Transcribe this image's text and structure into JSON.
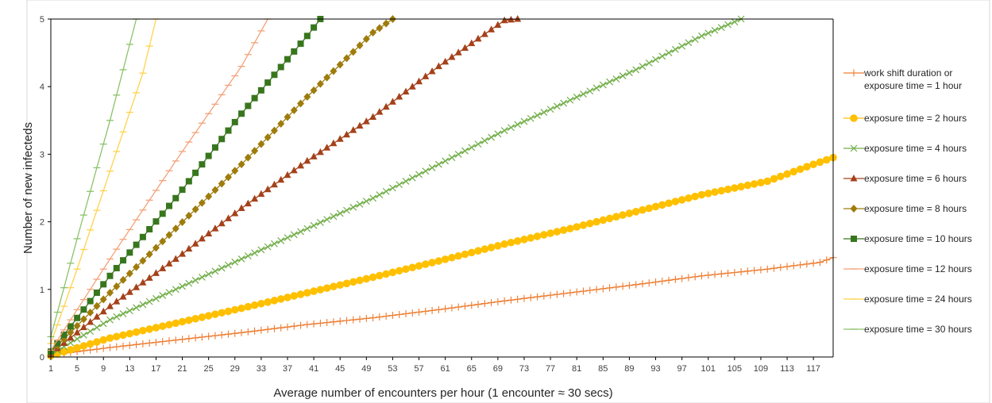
{
  "chart_data": {
    "type": "line",
    "title": "",
    "xlabel": "Average number of encounters per hour (1 encounter ≈ 30 secs)",
    "ylabel": "Number of new infecteds",
    "xlim": [
      1,
      120
    ],
    "ylim": [
      0,
      5
    ],
    "x_ticks": [
      1,
      5,
      9,
      13,
      17,
      21,
      25,
      29,
      33,
      37,
      41,
      45,
      49,
      53,
      57,
      61,
      65,
      69,
      73,
      77,
      81,
      85,
      89,
      93,
      97,
      101,
      105,
      109,
      113,
      117
    ],
    "y_ticks": [
      0,
      1,
      2,
      3,
      4,
      5
    ],
    "grid": false,
    "legend_position": "right",
    "series": [
      {
        "name": "work shift duration or exposure time = 1 hour",
        "label_lines": [
          "work shift duration or",
          "exposure time = 1 hour"
        ],
        "color": "#ED7D31",
        "marker": "plus",
        "x": [
          1,
          10,
          20,
          30,
          40,
          50,
          60,
          70,
          80,
          90,
          100,
          110,
          118,
          120
        ],
        "y": [
          0.03,
          0.14,
          0.25,
          0.36,
          0.48,
          0.58,
          0.7,
          0.83,
          0.95,
          1.07,
          1.2,
          1.3,
          1.4,
          1.47
        ]
      },
      {
        "name": "exposure time = 2 hours",
        "label_lines": [
          "exposure time = 2 hours"
        ],
        "color": "#FFC000",
        "marker": "circle",
        "x": [
          1,
          10,
          20,
          30,
          40,
          50,
          60,
          70,
          80,
          90,
          100,
          110,
          117,
          120
        ],
        "y": [
          0.02,
          0.28,
          0.5,
          0.72,
          0.95,
          1.18,
          1.42,
          1.67,
          1.9,
          2.15,
          2.4,
          2.6,
          2.85,
          2.95
        ]
      },
      {
        "name": "exposure time = 4 hours",
        "label_lines": [
          "exposure time = 4 hours"
        ],
        "color": "#70AD47",
        "marker": "x",
        "x": [
          1,
          10,
          20,
          30,
          40,
          50,
          60,
          70,
          80,
          90,
          100,
          106
        ],
        "y": [
          0.04,
          0.55,
          1.0,
          1.45,
          1.9,
          2.35,
          2.85,
          3.35,
          3.8,
          4.25,
          4.75,
          5.0
        ]
      },
      {
        "name": "exposure time = 6 hours",
        "label_lines": [
          "exposure time = 6 hours"
        ],
        "color": "#A5411A",
        "marker": "triangle",
        "x": [
          1,
          10,
          20,
          30,
          40,
          50,
          60,
          70,
          72
        ],
        "y": [
          0.05,
          0.75,
          1.45,
          2.2,
          2.9,
          3.55,
          4.3,
          4.98,
          5.0
        ]
      },
      {
        "name": "exposure time = 8 hours",
        "label_lines": [
          "exposure time = 8 hours"
        ],
        "color": "#9E7C0C",
        "marker": "diamond",
        "x": [
          1,
          10,
          20,
          30,
          40,
          50,
          53
        ],
        "y": [
          0.07,
          0.95,
          1.9,
          2.85,
          3.85,
          4.8,
          5.0
        ]
      },
      {
        "name": "exposure time = 10 hours",
        "label_lines": [
          "exposure time = 10 hours"
        ],
        "color": "#38761D",
        "marker": "square",
        "x": [
          1,
          10,
          20,
          30,
          40,
          42
        ],
        "y": [
          0.08,
          1.2,
          2.35,
          3.6,
          4.75,
          5.0
        ]
      },
      {
        "name": "exposure time = 12 hours",
        "label_lines": [
          "exposure time = 12 hours"
        ],
        "color": "#F4A27A",
        "marker": "dash",
        "x": [
          1,
          10,
          20,
          30,
          34
        ],
        "y": [
          0.1,
          1.45,
          2.9,
          4.3,
          5.0
        ]
      },
      {
        "name": "exposure time = 24 hours",
        "label_lines": [
          "exposure time = 24 hours"
        ],
        "color": "#FFD24D",
        "marker": "dash",
        "x": [
          1,
          5,
          10,
          15,
          17
        ],
        "y": [
          0.2,
          1.3,
          2.75,
          4.2,
          5.0
        ]
      },
      {
        "name": "exposure time = 30 hours",
        "label_lines": [
          "exposure time = 30 hours"
        ],
        "color": "#8CC26A",
        "marker": "dash",
        "x": [
          1,
          5,
          10,
          14
        ],
        "y": [
          0.3,
          1.75,
          3.5,
          5.0
        ]
      }
    ]
  }
}
